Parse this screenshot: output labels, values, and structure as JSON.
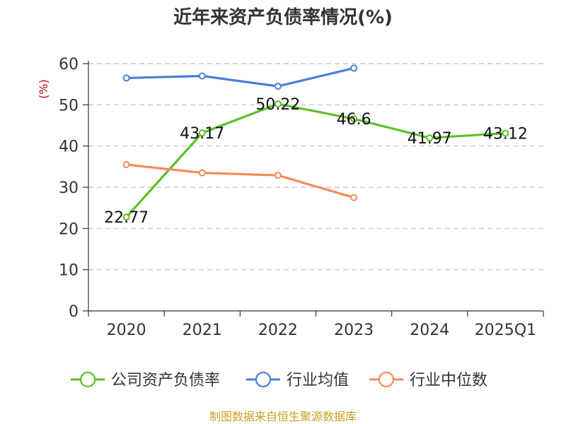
{
  "colors": {
    "company": "#5bc12a",
    "industry_avg": "#4a7fd8",
    "industry_median": "#f48b5a",
    "source": "#c8a022",
    "unit": "#cc0000",
    "grid": "#c0c0c0",
    "axis": "#333333"
  },
  "chart_data": {
    "type": "line",
    "title": "近年来资产负债率情况(%)",
    "ylabel": "(%)",
    "categories": [
      "2020",
      "2021",
      "2022",
      "2023",
      "2024",
      "2025Q1"
    ],
    "ylim": [
      0,
      60
    ],
    "yticks": [
      "0",
      "10",
      "20",
      "30",
      "40",
      "50",
      "60"
    ],
    "grid": true,
    "legend_position": "bottom",
    "series": [
      {
        "name": "公司资产负债率",
        "color_key": "company",
        "values": [
          22.77,
          43.17,
          50.22,
          46.6,
          41.97,
          43.12
        ],
        "labels": [
          "22.77",
          "43.17",
          "50.22",
          "46.6",
          "41.97",
          "43.12"
        ]
      },
      {
        "name": "行业均值",
        "color_key": "industry_avg",
        "values": [
          56.5,
          57.0,
          54.5,
          58.9,
          null,
          null
        ]
      },
      {
        "name": "行业中位数",
        "color_key": "industry_median",
        "values": [
          35.5,
          33.5,
          32.9,
          27.5,
          null,
          null
        ]
      }
    ]
  },
  "footer": {
    "source": "制图数据来自恒生聚源数据库"
  }
}
